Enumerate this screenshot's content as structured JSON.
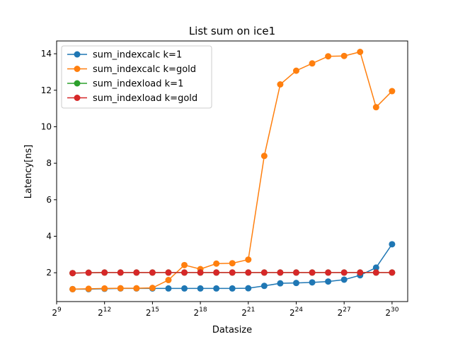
{
  "chart_data": {
    "type": "line",
    "title": "List sum on ice1",
    "xlabel": "Datasize",
    "ylabel": "Latency[ns]",
    "x_scale": "log2",
    "x_ticks": [
      {
        "exp": 9,
        "base": "2",
        "sup": "9"
      },
      {
        "exp": 12,
        "base": "2",
        "sup": "12"
      },
      {
        "exp": 15,
        "base": "2",
        "sup": "15"
      },
      {
        "exp": 18,
        "base": "2",
        "sup": "18"
      },
      {
        "exp": 21,
        "base": "2",
        "sup": "21"
      },
      {
        "exp": 24,
        "base": "2",
        "sup": "24"
      },
      {
        "exp": 27,
        "base": "2",
        "sup": "27"
      },
      {
        "exp": 30,
        "base": "2",
        "sup": "30"
      }
    ],
    "y_ticks": [
      2,
      4,
      6,
      8,
      10,
      12,
      14
    ],
    "y_tick_labels": [
      "2",
      "4",
      "6",
      "8",
      "10",
      "12",
      "14"
    ],
    "xlim_exp": [
      9,
      30.98
    ],
    "ylim": [
      0.42,
      14.7
    ],
    "grid": false,
    "legend_position": "top-left",
    "x_exponents": [
      10,
      11,
      12,
      13,
      14,
      15,
      16,
      17,
      18,
      19,
      20,
      21,
      22,
      23,
      24,
      25,
      26,
      27,
      28,
      29,
      30
    ],
    "series": [
      {
        "name": "sum_indexcalc k=1",
        "color": "#1f77b4",
        "values": [
          1.1,
          1.1,
          1.12,
          1.14,
          1.14,
          1.14,
          1.14,
          1.14,
          1.14,
          1.14,
          1.14,
          1.15,
          1.28,
          1.42,
          1.44,
          1.47,
          1.52,
          1.62,
          1.86,
          2.28,
          3.56
        ]
      },
      {
        "name": "sum_indexcalc k=gold",
        "color": "#ff7f0e",
        "values": [
          1.1,
          1.12,
          1.14,
          1.15,
          1.15,
          1.17,
          1.6,
          2.42,
          2.2,
          2.5,
          2.52,
          2.72,
          8.4,
          12.32,
          13.07,
          13.47,
          13.86,
          13.88,
          14.1,
          11.07,
          11.95
        ]
      },
      {
        "name": "sum_indexload k=1",
        "color": "#2ca02c",
        "values": [
          1.98,
          2.0,
          2.01,
          2.01,
          2.01,
          2.01,
          2.01,
          2.01,
          2.01,
          2.01,
          2.01,
          2.01,
          2.01,
          2.01,
          2.01,
          2.01,
          2.01,
          2.01,
          2.01,
          2.01,
          2.01
        ]
      },
      {
        "name": "sum_indexload k=gold",
        "color": "#d62728",
        "values": [
          1.98,
          2.0,
          2.01,
          2.01,
          2.01,
          2.01,
          2.01,
          2.01,
          2.01,
          2.01,
          2.01,
          2.01,
          2.01,
          2.01,
          2.01,
          2.01,
          2.01,
          2.01,
          2.01,
          2.01,
          2.01
        ]
      }
    ]
  }
}
